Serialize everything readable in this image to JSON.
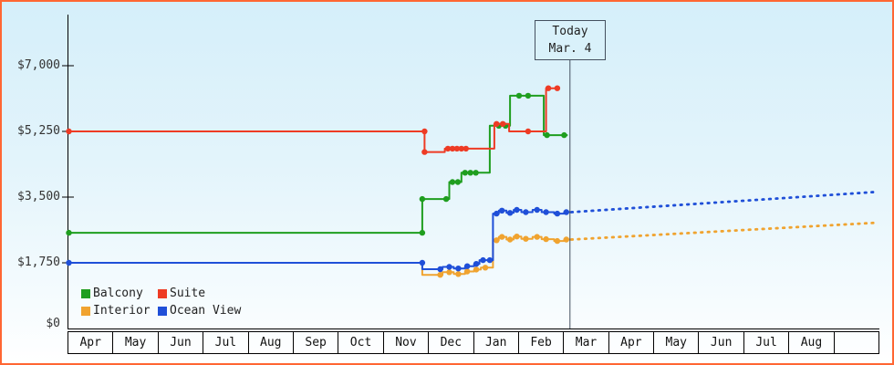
{
  "frame": {
    "border_color": "#ff6633",
    "bg_top": "#d5effa",
    "axis_color": "#000000",
    "today_line_color": "#44505f"
  },
  "chart_data": {
    "type": "line",
    "title": "",
    "y_unit": "USD",
    "ylim": [
      0,
      8300
    ],
    "grid": false,
    "legend_position": "bottom-left-inside",
    "y_tick_labels": [
      "$7,000",
      "$5,250",
      "$3,500",
      "$1,750",
      "$0"
    ],
    "y_tick_values": [
      7000,
      5250,
      3500,
      1750,
      0
    ],
    "x_tick_labels": [
      "Apr",
      "May",
      "Jun",
      "Jul",
      "Aug",
      "Sep",
      "Oct",
      "Nov",
      "Dec",
      "Jan",
      "Feb",
      "Mar",
      "Apr",
      "May",
      "Jun",
      "Jul",
      "Aug"
    ],
    "today": {
      "label": "Today",
      "date": "Mar. 4",
      "month_position": 11.13
    },
    "legend": [
      {
        "label": "Balcony",
        "color": "#1f9e1f"
      },
      {
        "label": "Suite",
        "color": "#ee3b24"
      },
      {
        "label": "Interior",
        "color": "#f0a32f"
      },
      {
        "label": "Ocean View",
        "color": "#1f4fd8"
      }
    ],
    "series": [
      {
        "name": "Balcony",
        "color": "#1f9e1f",
        "points": [
          [
            0,
            2550
          ],
          [
            7.85,
            2550
          ],
          [
            7.85,
            3450
          ],
          [
            8.45,
            3450
          ],
          [
            8.45,
            3900
          ],
          [
            8.72,
            3900
          ],
          [
            8.72,
            4150
          ],
          [
            9.35,
            4150
          ],
          [
            9.35,
            5400
          ],
          [
            9.8,
            5400
          ],
          [
            9.8,
            6200
          ],
          [
            10.55,
            6200
          ],
          [
            10.55,
            5150
          ],
          [
            11.08,
            5150
          ]
        ],
        "marker_points": [
          [
            0,
            2550
          ],
          [
            7.85,
            2550
          ],
          [
            7.85,
            3450
          ],
          [
            8.38,
            3450
          ],
          [
            8.52,
            3900
          ],
          [
            8.64,
            3900
          ],
          [
            8.8,
            4150
          ],
          [
            8.92,
            4150
          ],
          [
            9.04,
            4150
          ],
          [
            9.55,
            5400
          ],
          [
            9.7,
            5400
          ],
          [
            10.0,
            6200
          ],
          [
            10.2,
            6200
          ],
          [
            10.62,
            5150
          ],
          [
            11.0,
            5150
          ]
        ]
      },
      {
        "name": "Suite",
        "color": "#ee3b24",
        "points": [
          [
            0,
            5250
          ],
          [
            7.9,
            5250
          ],
          [
            7.9,
            4700
          ],
          [
            8.35,
            4700
          ],
          [
            8.35,
            4790
          ],
          [
            9.45,
            4790
          ],
          [
            9.45,
            5450
          ],
          [
            9.78,
            5450
          ],
          [
            9.78,
            5250
          ],
          [
            10.6,
            5250
          ],
          [
            10.6,
            6400
          ],
          [
            10.88,
            6400
          ]
        ],
        "marker_points": [
          [
            0,
            5250
          ],
          [
            7.9,
            5250
          ],
          [
            7.9,
            4700
          ],
          [
            8.42,
            4790
          ],
          [
            8.52,
            4790
          ],
          [
            8.62,
            4790
          ],
          [
            8.72,
            4790
          ],
          [
            8.82,
            4790
          ],
          [
            9.5,
            5450
          ],
          [
            9.64,
            5450
          ],
          [
            10.2,
            5250
          ],
          [
            10.65,
            6400
          ],
          [
            10.85,
            6400
          ]
        ]
      },
      {
        "name": "Interior",
        "color": "#f0a32f",
        "points": [
          [
            0,
            1750
          ],
          [
            7.85,
            1750
          ],
          [
            7.85,
            1430
          ],
          [
            8.3,
            1430
          ],
          [
            8.3,
            1500
          ],
          [
            8.55,
            1500
          ],
          [
            8.55,
            1450
          ],
          [
            8.8,
            1450
          ],
          [
            8.8,
            1520
          ],
          [
            9.0,
            1520
          ],
          [
            9.0,
            1570
          ],
          [
            9.15,
            1570
          ],
          [
            9.15,
            1620
          ],
          [
            9.42,
            1620
          ],
          [
            9.42,
            2350
          ],
          [
            9.55,
            2350
          ],
          [
            9.55,
            2440
          ],
          [
            9.72,
            2440
          ],
          [
            9.72,
            2370
          ],
          [
            9.88,
            2370
          ],
          [
            9.88,
            2450
          ],
          [
            10.05,
            2450
          ],
          [
            10.05,
            2390
          ],
          [
            10.3,
            2390
          ],
          [
            10.3,
            2440
          ],
          [
            10.5,
            2440
          ],
          [
            10.5,
            2380
          ],
          [
            10.78,
            2380
          ],
          [
            10.78,
            2330
          ],
          [
            11.0,
            2330
          ],
          [
            11.0,
            2370
          ],
          [
            11.13,
            2370
          ]
        ],
        "marker_points": [
          [
            8.25,
            1430
          ],
          [
            8.45,
            1500
          ],
          [
            8.65,
            1450
          ],
          [
            8.85,
            1520
          ],
          [
            9.05,
            1570
          ],
          [
            9.25,
            1620
          ],
          [
            9.5,
            2350
          ],
          [
            9.62,
            2440
          ],
          [
            9.8,
            2370
          ],
          [
            9.95,
            2450
          ],
          [
            10.15,
            2390
          ],
          [
            10.4,
            2440
          ],
          [
            10.6,
            2380
          ],
          [
            10.85,
            2330
          ],
          [
            11.05,
            2370
          ]
        ]
      },
      {
        "name": "Ocean View",
        "color": "#1f4fd8",
        "points": [
          [
            0,
            1750
          ],
          [
            7.85,
            1750
          ],
          [
            7.85,
            1580
          ],
          [
            8.3,
            1580
          ],
          [
            8.3,
            1640
          ],
          [
            8.55,
            1640
          ],
          [
            8.55,
            1600
          ],
          [
            8.8,
            1600
          ],
          [
            8.8,
            1660
          ],
          [
            9.0,
            1660
          ],
          [
            9.0,
            1720
          ],
          [
            9.12,
            1720
          ],
          [
            9.12,
            1820
          ],
          [
            9.42,
            1820
          ],
          [
            9.42,
            3060
          ],
          [
            9.55,
            3060
          ],
          [
            9.55,
            3140
          ],
          [
            9.72,
            3140
          ],
          [
            9.72,
            3080
          ],
          [
            9.88,
            3080
          ],
          [
            9.88,
            3160
          ],
          [
            10.05,
            3160
          ],
          [
            10.05,
            3100
          ],
          [
            10.3,
            3100
          ],
          [
            10.3,
            3160
          ],
          [
            10.5,
            3160
          ],
          [
            10.5,
            3100
          ],
          [
            10.78,
            3100
          ],
          [
            10.78,
            3060
          ],
          [
            11.0,
            3060
          ],
          [
            11.0,
            3100
          ],
          [
            11.13,
            3100
          ]
        ],
        "marker_points": [
          [
            0,
            1750
          ],
          [
            7.85,
            1750
          ],
          [
            8.25,
            1580
          ],
          [
            8.45,
            1640
          ],
          [
            8.65,
            1600
          ],
          [
            8.85,
            1660
          ],
          [
            9.05,
            1720
          ],
          [
            9.2,
            1820
          ],
          [
            9.35,
            1820
          ],
          [
            9.5,
            3060
          ],
          [
            9.62,
            3140
          ],
          [
            9.8,
            3080
          ],
          [
            9.95,
            3160
          ],
          [
            10.15,
            3100
          ],
          [
            10.4,
            3160
          ],
          [
            10.6,
            3100
          ],
          [
            10.85,
            3060
          ],
          [
            11.05,
            3100
          ]
        ]
      }
    ],
    "projections": [
      {
        "series": "Ocean View",
        "color": "#1f4fd8",
        "from": [
          11.16,
          3100
        ],
        "to": [
          17.97,
          3640
        ]
      },
      {
        "series": "Interior",
        "color": "#f0a32f",
        "from": [
          11.16,
          2370
        ],
        "to": [
          17.97,
          2820
        ]
      }
    ]
  }
}
